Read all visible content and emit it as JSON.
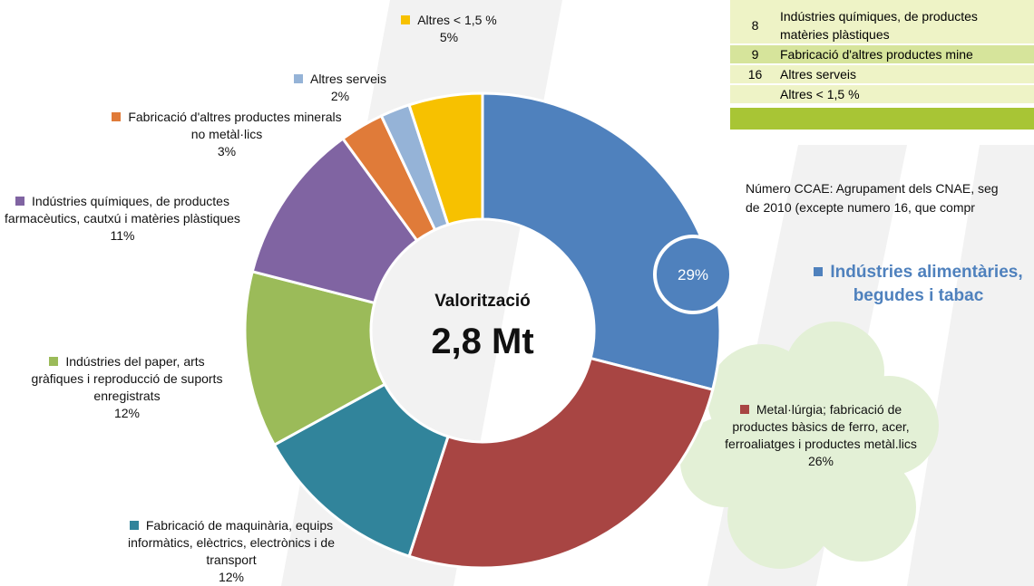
{
  "chart_data": {
    "type": "donut",
    "center_label": "Valorització",
    "center_value": "2,8 Mt",
    "categories": [
      "Indústries alimentàries, begudes i tabac",
      "Metal·lúrgia; fabricació de productes bàsics de ferro, acer, ferroaliatges i productes metàl.lics",
      "Fabricació de maquinària, equips informàtics, elèctrics, electrònics i de transport",
      "Indústries del paper, arts gràfiques i reproducció de suports enregistrats",
      "Indústries químiques, de productes farmacèutics, cautxú i matèries plàstiques",
      "Fabricació d'altres productes minerals no metàl·lics",
      "Altres serveis",
      "Altres < 1,5 %"
    ],
    "values": [
      29,
      26,
      12,
      12,
      11,
      3,
      2,
      5
    ],
    "value_labels": [
      "29%",
      "26%",
      "12%",
      "12%",
      "11%",
      "3%",
      "2%",
      "5%"
    ],
    "colors": [
      "#4f81bd",
      "#a84543",
      "#31849b",
      "#9bbb59",
      "#8064a2",
      "#e07b39",
      "#95b3d7",
      "#f7c100"
    ]
  },
  "table": {
    "rows": [
      {
        "number": 8,
        "lines": [
          "Indústries químiques, de productes",
          "matèries plàstiques"
        ]
      },
      {
        "number": 9,
        "lines": [
          "Fabricació d'altres productes mine"
        ]
      },
      {
        "number": 16,
        "lines": [
          "Altres serveis"
        ]
      },
      {
        "number": null,
        "lines": [
          "Altres < 1,5 %"
        ]
      }
    ]
  },
  "note": [
    "Número CCAE: Agrupament dels CNAE, seg",
    "de 2010 (excepte numero 16, que compr"
  ]
}
